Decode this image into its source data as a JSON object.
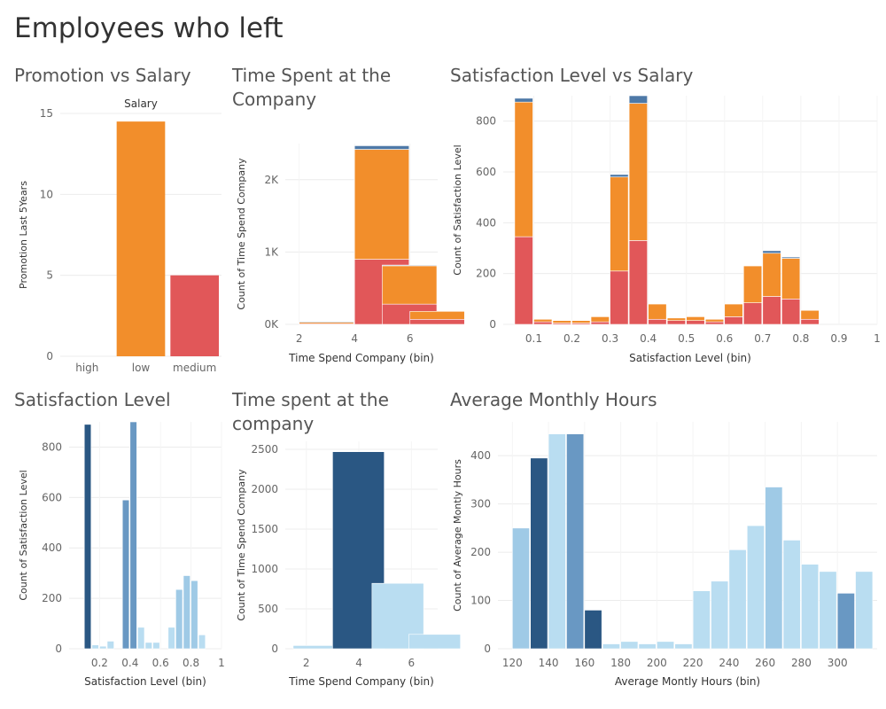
{
  "dashboard": {
    "title": "Employees who left"
  },
  "colors": {
    "grid": "#ececec",
    "axis_text": "#666666",
    "label_text": "#333333",
    "orange": "#f28e2b",
    "red": "#e15759",
    "blue": "#4e79a7",
    "light_blue": "#b9ddf1",
    "mid_blue": "#9fcae6",
    "steel_blue": "#6998c3",
    "dark_blue": "#2a5783"
  },
  "chart_data": [
    {
      "id": "promotion",
      "title": "Promotion vs Salary",
      "type": "bar",
      "column_header": "Salary",
      "categories": [
        "high",
        "low",
        "medium"
      ],
      "values": [
        0,
        14.5,
        5
      ],
      "bar_colors": [
        "#4e79a7",
        "#f28e2b",
        "#e15759"
      ],
      "ylabel": "Promotion Last 5Years",
      "xlabel": "",
      "ylim": [
        0,
        15
      ],
      "yticks": [
        0,
        5,
        10,
        15
      ],
      "grid": true
    },
    {
      "id": "time_stacked",
      "title": "Time Spent at the Company",
      "type": "bar",
      "stacked": true,
      "bin_width": 2,
      "x": [
        2,
        4,
        5,
        6
      ],
      "series": [
        {
          "color": "#e15759",
          "values": [
            10,
            900,
            280,
            70
          ]
        },
        {
          "color": "#f28e2b",
          "values": [
            20,
            1520,
            530,
            110
          ]
        },
        {
          "color": "#4e79a7",
          "values": [
            10,
            50,
            10,
            0
          ]
        }
      ],
      "xlabel": "Time Spend Company (bin)",
      "ylabel": "Count of Time Spend Company",
      "xlim": [
        1.5,
        7
      ],
      "xticks": [
        2,
        4,
        6
      ],
      "ylim": [
        0,
        2500
      ],
      "yticks": [
        0,
        1000,
        2000
      ],
      "ytick_labels": [
        "0K",
        "1K",
        "2K"
      ],
      "grid": true
    },
    {
      "id": "satisfaction_stacked",
      "title": "Satisfaction Level vs Salary",
      "type": "bar",
      "stacked": true,
      "bin_width": 0.05,
      "x": [
        0.05,
        0.1,
        0.15,
        0.2,
        0.25,
        0.3,
        0.35,
        0.4,
        0.45,
        0.5,
        0.55,
        0.6,
        0.65,
        0.7,
        0.75,
        0.8,
        0.85,
        0.9
      ],
      "series": [
        {
          "color": "#e15759",
          "values": [
            345,
            10,
            5,
            5,
            10,
            210,
            330,
            20,
            15,
            15,
            10,
            30,
            85,
            110,
            100,
            20,
            0,
            0
          ]
        },
        {
          "color": "#f28e2b",
          "values": [
            530,
            10,
            10,
            10,
            20,
            370,
            540,
            60,
            10,
            15,
            10,
            50,
            145,
            170,
            160,
            35,
            0,
            0
          ]
        },
        {
          "color": "#4e79a7",
          "values": [
            15,
            0,
            0,
            0,
            0,
            10,
            30,
            0,
            0,
            0,
            0,
            0,
            0,
            10,
            5,
            0,
            0,
            0
          ]
        }
      ],
      "xlabel": "Satisfaction Level (bin)",
      "ylabel": "Count of Satisfaction Level",
      "xlim": [
        0.02,
        1.0
      ],
      "xticks": [
        0.1,
        0.2,
        0.3,
        0.4,
        0.5,
        0.6,
        0.7,
        0.8,
        0.9,
        1.0
      ],
      "ylim": [
        0,
        900
      ],
      "yticks": [
        0,
        200,
        400,
        600,
        800
      ],
      "grid": true
    },
    {
      "id": "satisfaction_hist",
      "title": "Satisfaction Level",
      "type": "bar",
      "bin_width": 0.05,
      "x": [
        0.05,
        0.1,
        0.15,
        0.2,
        0.25,
        0.3,
        0.35,
        0.4,
        0.45,
        0.5,
        0.55,
        0.6,
        0.65,
        0.7,
        0.75,
        0.8,
        0.85,
        0.9
      ],
      "values": [
        890,
        0,
        0,
        0,
        0,
        0,
        0,
        0,
        0,
        0,
        0,
        0,
        0,
        0,
        0,
        0,
        0,
        0
      ],
      "bars": [
        {
          "x": 0.1,
          "value": 890,
          "color": "#2a5783"
        },
        {
          "x": 0.15,
          "value": 15,
          "color": "#b9ddf1"
        },
        {
          "x": 0.2,
          "value": 10,
          "color": "#b9ddf1"
        },
        {
          "x": 0.25,
          "value": 30,
          "color": "#b9ddf1"
        },
        {
          "x": 0.35,
          "value": 590,
          "color": "#6998c3"
        },
        {
          "x": 0.4,
          "value": 900,
          "color": "#6998c3"
        },
        {
          "x": 0.45,
          "value": 85,
          "color": "#b9ddf1"
        },
        {
          "x": 0.5,
          "value": 25,
          "color": "#b9ddf1"
        },
        {
          "x": 0.55,
          "value": 25,
          "color": "#b9ddf1"
        },
        {
          "x": 0.65,
          "value": 85,
          "color": "#b9ddf1"
        },
        {
          "x": 0.7,
          "value": 235,
          "color": "#9fcae6"
        },
        {
          "x": 0.75,
          "value": 290,
          "color": "#9fcae6"
        },
        {
          "x": 0.8,
          "value": 270,
          "color": "#9fcae6"
        },
        {
          "x": 0.85,
          "value": 55,
          "color": "#b9ddf1"
        }
      ],
      "xlabel": "Satisfaction Level (bin)",
      "ylabel": "Count of Satisfaction Level",
      "xlim": [
        0.0,
        1.0
      ],
      "xticks": [
        0.2,
        0.4,
        0.6,
        0.8,
        1.0
      ],
      "ylim": [
        0,
        900
      ],
      "yticks": [
        0,
        200,
        400,
        600,
        800
      ],
      "grid": true
    },
    {
      "id": "time_hist",
      "title": "Time spent at the company",
      "type": "bar",
      "bin_width": 2,
      "bars": [
        {
          "x": 1.5,
          "value": 40,
          "color": "#b9ddf1"
        },
        {
          "x": 3,
          "value": 2470,
          "color": "#2a5783"
        },
        {
          "x": 4.5,
          "value": 820,
          "color": "#b9ddf1"
        },
        {
          "x": 5.9,
          "value": 180,
          "color": "#b9ddf1"
        }
      ],
      "xlabel": "Time Spend Company (bin)",
      "ylabel": "Count of Time Spend Company",
      "xlim": [
        1.2,
        7
      ],
      "xticks": [
        2,
        4,
        6
      ],
      "ylim": [
        0,
        2600
      ],
      "yticks": [
        0,
        500,
        1000,
        1500,
        2000,
        2500
      ],
      "grid": true
    },
    {
      "id": "hours_hist",
      "title": "Average Monthly Hours",
      "type": "bar",
      "bin_width": 10,
      "bars": [
        {
          "x": 120,
          "value": 250,
          "color": "#9fcae6"
        },
        {
          "x": 130,
          "value": 395,
          "color": "#2a5783"
        },
        {
          "x": 140,
          "value": 445,
          "color": "#b9ddf1"
        },
        {
          "x": 150,
          "value": 445,
          "color": "#6998c3"
        },
        {
          "x": 160,
          "value": 80,
          "color": "#2a5783"
        },
        {
          "x": 170,
          "value": 10,
          "color": "#b9ddf1"
        },
        {
          "x": 180,
          "value": 15,
          "color": "#b9ddf1"
        },
        {
          "x": 190,
          "value": 10,
          "color": "#b9ddf1"
        },
        {
          "x": 200,
          "value": 15,
          "color": "#b9ddf1"
        },
        {
          "x": 210,
          "value": 10,
          "color": "#b9ddf1"
        },
        {
          "x": 220,
          "value": 120,
          "color": "#b9ddf1"
        },
        {
          "x": 230,
          "value": 140,
          "color": "#b9ddf1"
        },
        {
          "x": 240,
          "value": 205,
          "color": "#b9ddf1"
        },
        {
          "x": 250,
          "value": 255,
          "color": "#b9ddf1"
        },
        {
          "x": 260,
          "value": 335,
          "color": "#9fcae6"
        },
        {
          "x": 270,
          "value": 225,
          "color": "#b9ddf1"
        },
        {
          "x": 280,
          "value": 175,
          "color": "#b9ddf1"
        },
        {
          "x": 290,
          "value": 160,
          "color": "#b9ddf1"
        },
        {
          "x": 300,
          "value": 115,
          "color": "#6998c3"
        },
        {
          "x": 310,
          "value": 160,
          "color": "#b9ddf1"
        }
      ],
      "xlabel": "Average Montly Hours (bin)",
      "ylabel": "Count of Average Montly Hours",
      "xlim": [
        112,
        322
      ],
      "xticks": [
        120,
        140,
        160,
        180,
        200,
        220,
        240,
        260,
        280,
        300
      ],
      "ylim": [
        0,
        470
      ],
      "yticks": [
        0,
        100,
        200,
        300,
        400
      ],
      "grid": true
    }
  ]
}
